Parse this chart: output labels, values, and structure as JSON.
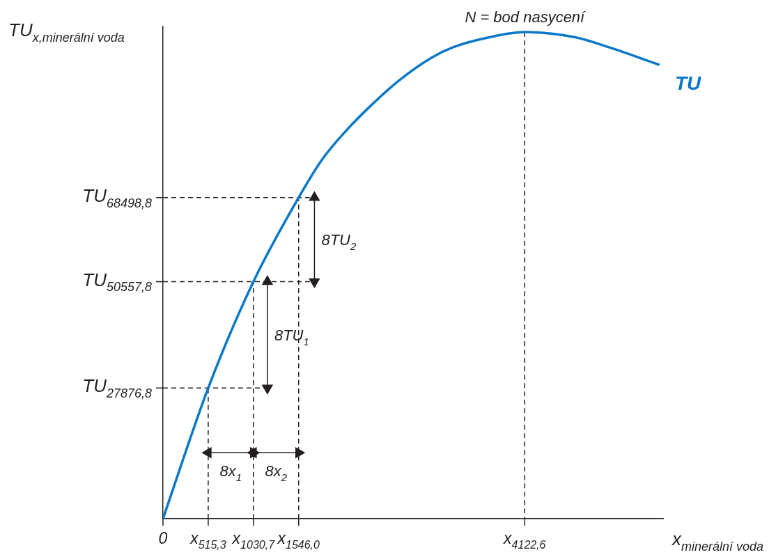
{
  "chart_data": {
    "type": "line",
    "xlabel": "x$_{minerální voda}$",
    "ylabel": "TU$_{x,minerální voda}$",
    "xlim": [
      0,
      5700
    ],
    "ylim": [
      0,
      105000
    ],
    "xticks": [
      {
        "value": 0,
        "label": "0"
      },
      {
        "value": 515.3,
        "label": "x$_{515,3}$"
      },
      {
        "value": 1030.7,
        "label": "x$_{1030,7}$"
      },
      {
        "value": 1546.0,
        "label": "x$_{1546,0}$"
      },
      {
        "value": 4122.6,
        "label": "x$_{4122,6}$"
      }
    ],
    "yticks": [
      {
        "value": 27876.8,
        "label": "TU$_{27876,8}$"
      },
      {
        "value": 50557.8,
        "label": "TU$_{50557,8}$"
      },
      {
        "value": 68498.8,
        "label": "TU$_{68498,8}$"
      }
    ],
    "annotations": [
      {
        "text": "N = bod nasycení",
        "x": 4122.6,
        "y": 103800
      },
      {
        "text": "8TU$_{1}$",
        "x": 1190,
        "y": 39217.3
      },
      {
        "text": "8TU$_{2}$",
        "x": 1726,
        "y": 59528.3
      },
      {
        "text": "8x$_{1}$",
        "x": 773,
        "y": 14070
      },
      {
        "text": "8x$_{2}$",
        "x": 1288.35,
        "y": 14070
      }
    ],
    "series": [
      {
        "name": "TU",
        "type": "line",
        "color": "#0a77c8",
        "x": [
          0,
          515.3,
          1030.7,
          1546.0,
          1817,
          2089,
          2357,
          2712,
          3066,
          3311,
          3721,
          4122.6,
          4698,
          5077,
          5660
        ],
        "values": [
          0,
          27876.8,
          50557.8,
          68498.8,
          76700,
          82800,
          87900,
          93800,
          98400,
          100600,
          102700,
          103800,
          102700,
          100600,
          96800
        ]
      },
      {
        "type": "line",
        "color": "#231f20",
        "line_style": "dashed",
        "x": [
          0,
          1190
        ],
        "values": [
          27876.8,
          27876.8
        ]
      },
      {
        "type": "line",
        "color": "#231f20",
        "line_style": "dashed",
        "x": [
          0,
          1718
        ],
        "values": [
          50557.8,
          50557.8
        ]
      },
      {
        "type": "line",
        "color": "#231f20",
        "line_style": "dashed",
        "x": [
          0,
          1718
        ],
        "values": [
          68498.8,
          68498.8
        ]
      },
      {
        "type": "line",
        "color": "#231f20",
        "line_style": "dashed",
        "x": [
          515.3,
          515.3
        ],
        "values": [
          0,
          27876.8
        ]
      },
      {
        "type": "line",
        "color": "#231f20",
        "line_style": "dashed",
        "x": [
          1030.7,
          1030.7
        ],
        "values": [
          0,
          50557.8
        ]
      },
      {
        "type": "line",
        "color": "#231f20",
        "line_style": "dashed",
        "x": [
          1546.0,
          1546.0
        ],
        "values": [
          0,
          68498.8
        ]
      },
      {
        "type": "line",
        "color": "#231f20",
        "line_style": "dashed",
        "x": [
          4122.6,
          4122.6
        ],
        "values": [
          103800,
          0
        ]
      },
      {
        "type": "line",
        "color": "#231f20",
        "line_style": "solid",
        "marker": "triangle",
        "x": [
          1190,
          1190
        ],
        "values": [
          27876.8,
          50557.8
        ]
      },
      {
        "type": "line",
        "color": "#231f20",
        "line_style": "solid",
        "marker": "triangle",
        "x": [
          1726,
          1726
        ],
        "values": [
          50557.8,
          68498.8
        ]
      },
      {
        "type": "line",
        "color": "#231f20",
        "line_style": "solid",
        "marker": "triangle",
        "x": [
          515.3,
          1030.7
        ],
        "values": [
          14070,
          14070
        ]
      },
      {
        "type": "line",
        "color": "#231f20",
        "line_style": "solid",
        "marker": "triangle",
        "x": [
          1030.7,
          1546.0
        ],
        "values": [
          14070,
          14070
        ]
      }
    ]
  }
}
